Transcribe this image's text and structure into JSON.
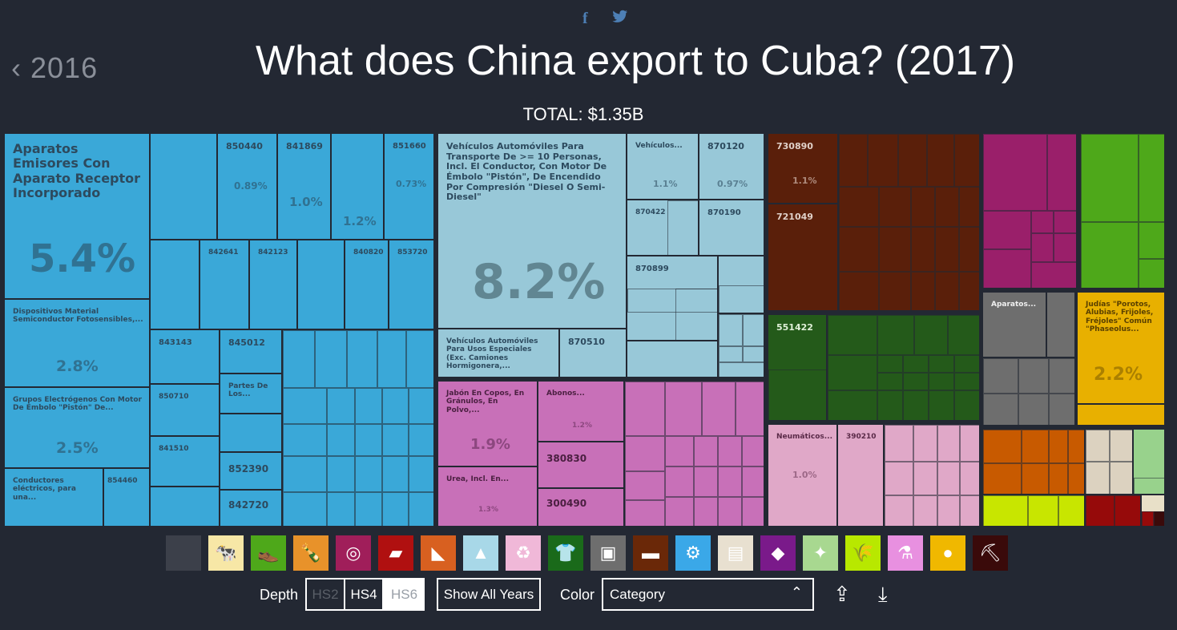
{
  "header": {
    "social": {
      "facebook_icon": "f",
      "twitter_icon": "🐦"
    },
    "prev_year": "2016",
    "title": "What does China export to Cuba? (2017)",
    "total": "TOTAL: $1.35B"
  },
  "colors": {
    "machinery": "#3aa8d8",
    "transport": "#98c8d8",
    "chemicals": "#c870b8",
    "metals": "#5a1f0a",
    "textiles": "#245a1a",
    "plastics": "#e8aacc",
    "stone": "#9a1f6a",
    "footwear": "#4ea81a",
    "misc": "#6e6e6e",
    "vegetables": "#e8b000",
    "instruments": "#c85a00",
    "animal_hides": "#c8e600",
    "paper": "#dcd2c0",
    "other_green": "#98d28c",
    "weapons": "#960a0a"
  },
  "treemap": {
    "machinery": {
      "main": {
        "label": "Aparatos Emisores Con Aparato Receptor Incorporado",
        "pct": "5.4%"
      },
      "dispositivos": {
        "label": "Dispositivos Material Semiconductor Fotosensibles,...",
        "pct": "2.8%"
      },
      "grupos": {
        "label": "Grupos Electrógenos Con Motor De Émbolo \"Pistón\" De...",
        "pct": "2.5%"
      },
      "conductores": {
        "label": "Conductores eléctricos, para una...",
        "code": "854460"
      },
      "codes": {
        "c850440": "850440",
        "c841869": "841869",
        "c851660": "851660",
        "p850440": "0.89%",
        "p841869": "1.0%",
        "p_mid": "1.2%",
        "p851660": "0.73%",
        "c842641": "842641",
        "c842123": "842123",
        "c840820": "840820",
        "c853720": "853720",
        "c843143": "843143",
        "c845012": "845012",
        "c850710": "850710",
        "partes": "Partes De Los...",
        "c841510": "841510",
        "c852390": "852390",
        "c842720": "842720"
      }
    },
    "transport": {
      "main": {
        "label": "Vehículos Automóviles Para Transporte De >= 10 Personas, Incl. El Conductor, Con Motor De Émbolo \"Pistón\", De Encendido Por Compresión \"Diesel O Semi-Diesel\"",
        "pct": "8.2%"
      },
      "especiales": {
        "label": "Vehículos Automóviles Para Usos Especiales (Exc. Camiones Hormigonera,...",
        "code": "870510"
      },
      "vehiculos": {
        "label": "Vehículos...",
        "pct": "1.1%"
      },
      "c870120": "870120",
      "p870120": "0.97%",
      "c870422": "870422",
      "c870190": "870190",
      "c870899": "870899"
    },
    "metals": {
      "c730890": "730890",
      "p730890": "1.1%",
      "c721049": "721049"
    },
    "textiles": {
      "c551422": "551422"
    },
    "chemicals": {
      "jabon": {
        "label": "Jabón En Copos, En Gránulos, En Polvo,...",
        "pct": "1.9%"
      },
      "abonos": {
        "label": "Abonos...",
        "pct": "1.2%"
      },
      "urea": {
        "label": "Urea, Incl. En...",
        "pct": "1.3%"
      },
      "c380830": "380830",
      "c300490": "300490"
    },
    "plastics": {
      "neumaticos": "Neumáticos...",
      "pct": "1.0%",
      "c390210": "390210"
    },
    "misc": {
      "aparatos": "Aparatos..."
    },
    "vegetables": {
      "label": "Judías \"Porotos, Alubias, Frijoles, Fréjoles\" Común \"Phaseolus...",
      "pct": "2.2%"
    }
  },
  "categories": [
    {
      "name": "all-icon",
      "glyph": "",
      "color": "#3c404a"
    },
    {
      "name": "animal-products-icon",
      "glyph": "🐄",
      "color": "#f7e7a6"
    },
    {
      "name": "footwear-icon",
      "glyph": "👞",
      "color": "#4ea81a"
    },
    {
      "name": "foodstuffs-icon",
      "glyph": "🍾",
      "color": "#e8922a"
    },
    {
      "name": "plastics-rubber-icon",
      "glyph": "◎",
      "color": "#a01e5a"
    },
    {
      "name": "stone-glass-icon",
      "glyph": "▰",
      "color": "#b01010"
    },
    {
      "name": "minerals-icon",
      "glyph": "◣",
      "color": "#d86020"
    },
    {
      "name": "transport-icon",
      "glyph": "▲",
      "color": "#a8d8e8"
    },
    {
      "name": "recycle-icon",
      "glyph": "♻",
      "color": "#f0b8d8"
    },
    {
      "name": "textiles-icon",
      "glyph": "👕",
      "color": "#1a6a1a"
    },
    {
      "name": "misc-box-icon",
      "glyph": "▣",
      "color": "#6e6e6e"
    },
    {
      "name": "metals-anvil-icon",
      "glyph": "▬",
      "color": "#6a2808"
    },
    {
      "name": "machinery-gears-icon",
      "glyph": "⚙",
      "color": "#3aa8e8"
    },
    {
      "name": "paper-icon",
      "glyph": "▤",
      "color": "#e8e0d0"
    },
    {
      "name": "precious-stones-icon",
      "glyph": "◆",
      "color": "#7a1a8a"
    },
    {
      "name": "animal-hides-icon",
      "glyph": "✦",
      "color": "#a8d890"
    },
    {
      "name": "vegetable-products-icon",
      "glyph": "🌾",
      "color": "#b8e800"
    },
    {
      "name": "chemicals-icon",
      "glyph": "⚗",
      "color": "#e890e0"
    },
    {
      "name": "vegetables-tomato-icon",
      "glyph": "●",
      "color": "#f0b800"
    },
    {
      "name": "weapons-pickaxe-icon",
      "glyph": "⛏",
      "color": "#3a0a0a"
    }
  ],
  "controls": {
    "depth_label": "Depth",
    "hs2": "HS2",
    "hs4": "HS4",
    "hs6": "HS6",
    "show_years": "Show All Years",
    "color_label": "Color",
    "color_value": "Category",
    "share_icon": "⇪",
    "download_icon": "⤓"
  }
}
